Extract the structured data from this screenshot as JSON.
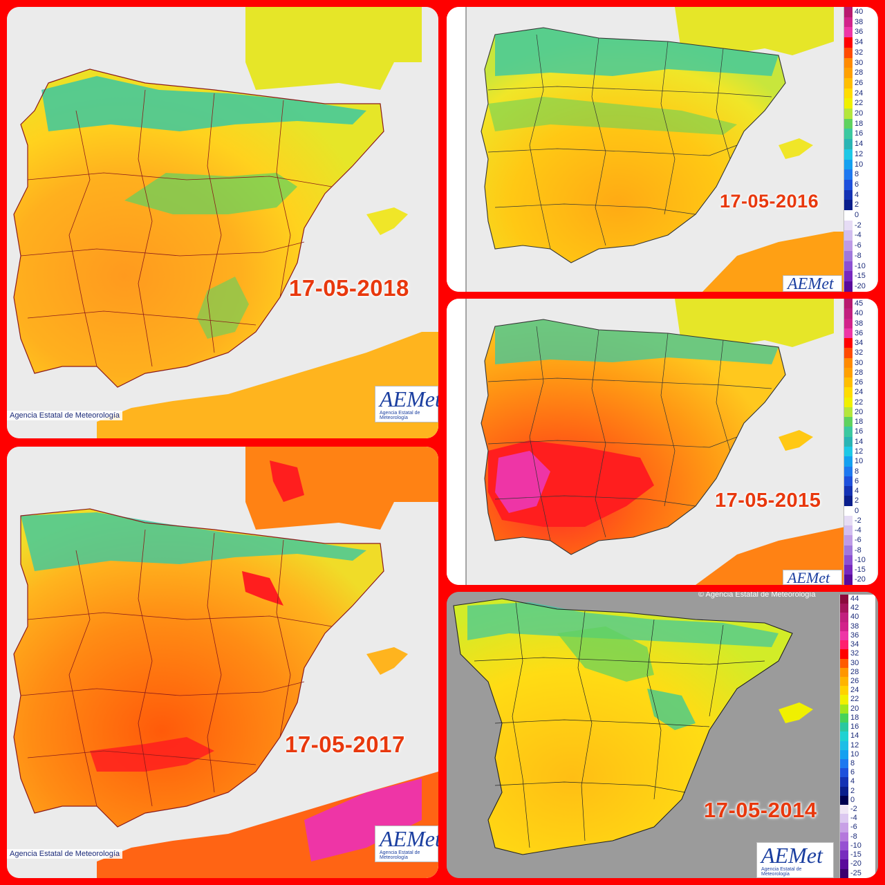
{
  "panels": {
    "p2018": {
      "date": "17-05-2018",
      "credit": "Agencia Estatal de Meteorología"
    },
    "p2017": {
      "date": "17-05-2017",
      "credit": "Agencia Estatal de Meteorología"
    },
    "p2016": {
      "date": "17-05-2016"
    },
    "p2015": {
      "date": "17-05-2015"
    },
    "p2014": {
      "date": "17-05-2014",
      "credit": "© Agencia Estatal de Meteorología"
    }
  },
  "logo": {
    "name": "AEMet",
    "subtitle": "Agencia Estatal de Meteorología"
  },
  "scale_a": [
    {
      "label": "40",
      "color": "#b8196e"
    },
    {
      "label": "38",
      "color": "#d2228a"
    },
    {
      "label": "36",
      "color": "#ee35a6"
    },
    {
      "label": "34",
      "color": "#ff0000"
    },
    {
      "label": "32",
      "color": "#ff4a00"
    },
    {
      "label": "30",
      "color": "#ff8a00"
    },
    {
      "label": "28",
      "color": "#ffa000"
    },
    {
      "label": "26",
      "color": "#ffbe00"
    },
    {
      "label": "24",
      "color": "#ffdc00"
    },
    {
      "label": "22",
      "color": "#f0f000"
    },
    {
      "label": "20",
      "color": "#b4e63c"
    },
    {
      "label": "18",
      "color": "#5fd25f"
    },
    {
      "label": "16",
      "color": "#3cc8a0"
    },
    {
      "label": "14",
      "color": "#2ab4b4"
    },
    {
      "label": "12",
      "color": "#1ec8e6"
    },
    {
      "label": "10",
      "color": "#14a0f0"
    },
    {
      "label": "8",
      "color": "#1e78f0"
    },
    {
      "label": "6",
      "color": "#1e50dc"
    },
    {
      "label": "4",
      "color": "#1432b4"
    },
    {
      "label": "2",
      "color": "#0a1e8c"
    },
    {
      "label": "0",
      "color": "#ffffff"
    },
    {
      "label": "-2",
      "color": "#e6dcf5"
    },
    {
      "label": "-4",
      "color": "#d2bef0"
    },
    {
      "label": "-6",
      "color": "#be9be6"
    },
    {
      "label": "-8",
      "color": "#a078dc"
    },
    {
      "label": "-10",
      "color": "#8c50d2"
    },
    {
      "label": "-15",
      "color": "#7828be"
    },
    {
      "label": "-20",
      "color": "#5a0a9b"
    }
  ],
  "scale_b": [
    {
      "label": "45",
      "color": "#b8196e"
    },
    {
      "label": "40",
      "color": "#c21f7e"
    },
    {
      "label": "38",
      "color": "#d2228a"
    },
    {
      "label": "36",
      "color": "#ee35a6"
    },
    {
      "label": "34",
      "color": "#ff0000"
    },
    {
      "label": "32",
      "color": "#ff4a00"
    },
    {
      "label": "30",
      "color": "#ff8a00"
    },
    {
      "label": "28",
      "color": "#ffa000"
    },
    {
      "label": "26",
      "color": "#ffbe00"
    },
    {
      "label": "24",
      "color": "#ffdc00"
    },
    {
      "label": "22",
      "color": "#f0f000"
    },
    {
      "label": "20",
      "color": "#b4e63c"
    },
    {
      "label": "18",
      "color": "#5fd25f"
    },
    {
      "label": "16",
      "color": "#3cc8a0"
    },
    {
      "label": "14",
      "color": "#2ab4b4"
    },
    {
      "label": "12",
      "color": "#1ec8e6"
    },
    {
      "label": "10",
      "color": "#14a0f0"
    },
    {
      "label": "8",
      "color": "#1e78f0"
    },
    {
      "label": "6",
      "color": "#1e50dc"
    },
    {
      "label": "4",
      "color": "#1432b4"
    },
    {
      "label": "2",
      "color": "#0a1e8c"
    },
    {
      "label": "0",
      "color": "#ffffff"
    },
    {
      "label": "-2",
      "color": "#e6dcf5"
    },
    {
      "label": "-4",
      "color": "#d2bef0"
    },
    {
      "label": "-6",
      "color": "#be9be6"
    },
    {
      "label": "-8",
      "color": "#a078dc"
    },
    {
      "label": "-10",
      "color": "#8c50d2"
    },
    {
      "label": "-15",
      "color": "#7828be"
    },
    {
      "label": "-20",
      "color": "#5a0a9b"
    }
  ],
  "scale_c": [
    {
      "label": "44",
      "color": "#8c0a3c"
    },
    {
      "label": "42",
      "color": "#a5145a"
    },
    {
      "label": "40",
      "color": "#c21f7e"
    },
    {
      "label": "38",
      "color": "#d2228a"
    },
    {
      "label": "36",
      "color": "#ee35a6"
    },
    {
      "label": "34",
      "color": "#ff1e6e"
    },
    {
      "label": "32",
      "color": "#ff0000"
    },
    {
      "label": "30",
      "color": "#ff5a00"
    },
    {
      "label": "28",
      "color": "#ff9600"
    },
    {
      "label": "26",
      "color": "#ffb400"
    },
    {
      "label": "24",
      "color": "#ffd200"
    },
    {
      "label": "22",
      "color": "#f0f000"
    },
    {
      "label": "20",
      "color": "#a0e61e"
    },
    {
      "label": "18",
      "color": "#46d25a"
    },
    {
      "label": "16",
      "color": "#2ac8a0"
    },
    {
      "label": "14",
      "color": "#1ed2d2"
    },
    {
      "label": "12",
      "color": "#1ebee6"
    },
    {
      "label": "10",
      "color": "#14a0f0"
    },
    {
      "label": "8",
      "color": "#1e78f0"
    },
    {
      "label": "6",
      "color": "#1e50dc"
    },
    {
      "label": "4",
      "color": "#1432b4"
    },
    {
      "label": "2",
      "color": "#0a1e8c"
    },
    {
      "label": "0",
      "color": "#000050"
    },
    {
      "label": "-2",
      "color": "#f0e6f5"
    },
    {
      "label": "-4",
      "color": "#dcc8f0"
    },
    {
      "label": "-6",
      "color": "#c8a0e6"
    },
    {
      "label": "-8",
      "color": "#b478dc"
    },
    {
      "label": "-10",
      "color": "#9650d2"
    },
    {
      "label": "-15",
      "color": "#782dbe"
    },
    {
      "label": "-20",
      "color": "#5a0a9b"
    },
    {
      "label": "-25",
      "color": "#3c006e"
    }
  ]
}
